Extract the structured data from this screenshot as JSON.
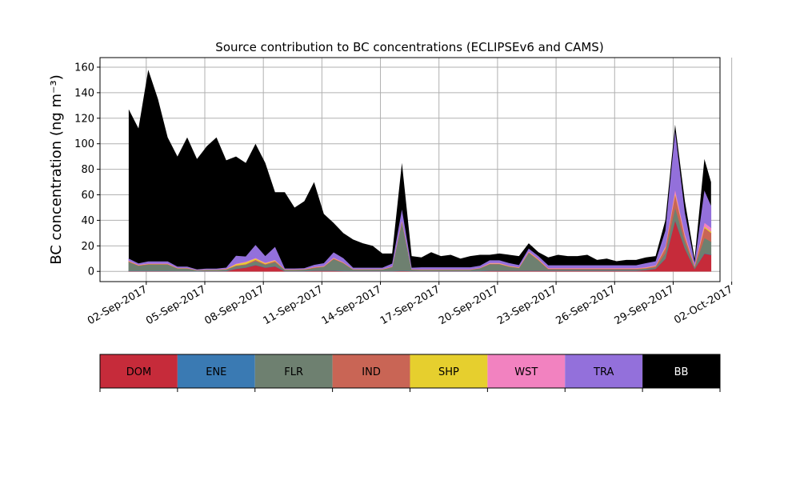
{
  "chart_data": {
    "type": "area",
    "stacked": true,
    "title": "Source contribution to BC concentrations (ECLIPSEv6 and CAMS)",
    "ylabel": "BC concentration (ng m⁻³)",
    "xlabel": "",
    "x_unit": "days since 02-Sep-2017 00:00",
    "xlim": [
      -2.37,
      29.4
    ],
    "ylim": [
      -8,
      167.5
    ],
    "grid": true,
    "yticks": [
      0,
      20,
      40,
      60,
      80,
      100,
      120,
      140,
      160
    ],
    "xticks": [
      {
        "value": 0,
        "label": "02-Sep-2017"
      },
      {
        "value": 3,
        "label": "05-Sep-2017"
      },
      {
        "value": 6,
        "label": "08-Sep-2017"
      },
      {
        "value": 9,
        "label": "11-Sep-2017"
      },
      {
        "value": 12,
        "label": "14-Sep-2017"
      },
      {
        "value": 15,
        "label": "17-Sep-2017"
      },
      {
        "value": 18,
        "label": "20-Sep-2017"
      },
      {
        "value": 21,
        "label": "23-Sep-2017"
      },
      {
        "value": 24,
        "label": "26-Sep-2017"
      },
      {
        "value": 27,
        "label": "29-Sep-2017"
      },
      {
        "value": 30,
        "label": "02-Oct-2017"
      }
    ],
    "x_start": -0.9,
    "x_step": 0.5,
    "total": [
      127,
      112,
      158,
      135,
      105,
      90,
      105,
      88,
      98,
      105,
      87,
      90,
      85,
      100,
      85,
      62,
      62,
      50,
      55,
      70,
      45,
      38,
      30,
      25,
      22,
      20,
      14,
      14,
      85,
      12,
      11,
      15,
      12,
      13,
      10,
      12,
      13,
      13,
      14,
      13,
      12,
      22,
      15,
      11,
      13,
      12,
      12,
      13,
      9,
      10,
      8,
      9,
      9,
      11,
      12,
      40,
      115,
      55,
      10,
      88,
      70
    ],
    "series": [
      {
        "name": "DOM",
        "color": "#c62b3a",
        "values": [
          0.3,
          0.3,
          0.3,
          0.3,
          0.3,
          0.2,
          0.2,
          0.1,
          0.2,
          0.2,
          0.3,
          2,
          3,
          5,
          3,
          4,
          0.2,
          0.2,
          0.2,
          0.5,
          0.5,
          0.5,
          0.3,
          0.2,
          0.2,
          0.2,
          0.2,
          0.2,
          0.5,
          0.2,
          0.2,
          0.2,
          0.2,
          0.2,
          0.2,
          0.2,
          0.3,
          0.5,
          0.5,
          0.5,
          0.5,
          0.5,
          0.5,
          0.5,
          0.5,
          0.5,
          0.5,
          0.5,
          0.5,
          0.5,
          0.5,
          0.5,
          0.5,
          1,
          2,
          10,
          40,
          18,
          2,
          14,
          13
        ]
      },
      {
        "name": "ENE",
        "color": "#3a7ab3",
        "values": [
          0.2,
          0.2,
          0.2,
          0.2,
          0.2,
          0.2,
          0.2,
          0.2,
          0.2,
          0.2,
          0.2,
          0.2,
          0.2,
          0.2,
          0.2,
          0.2,
          0.2,
          0.2,
          0.2,
          0.2,
          0.2,
          0.2,
          0.2,
          0.2,
          0.2,
          0.2,
          0.2,
          0.2,
          0.2,
          0.2,
          0.2,
          0.2,
          0.2,
          0.2,
          0.2,
          0.2,
          0.2,
          0.2,
          0.2,
          0.2,
          0.2,
          0.2,
          0.2,
          0.2,
          0.2,
          0.2,
          0.2,
          0.2,
          0.2,
          0.2,
          0.2,
          0.2,
          0.2,
          0.2,
          0.2,
          0.3,
          0.5,
          0.3,
          0.2,
          0.3,
          0.3
        ]
      },
      {
        "name": "FLR",
        "color": "#6e8070",
        "values": [
          7,
          4,
          5,
          5,
          5,
          2,
          2,
          0.5,
          0.8,
          0.8,
          1,
          2,
          2,
          3,
          2,
          3,
          0.8,
          0.8,
          1,
          2,
          3,
          9,
          6,
          1,
          1,
          1,
          1,
          3,
          38,
          1,
          0.8,
          0.8,
          0.8,
          0.8,
          0.8,
          0.8,
          2,
          5,
          5,
          3,
          2,
          14,
          8,
          1,
          1,
          1,
          1,
          1,
          1,
          1,
          1,
          1,
          1,
          1,
          1,
          4,
          10,
          5,
          1,
          12,
          10
        ]
      },
      {
        "name": "IND",
        "color": "#c96555",
        "values": [
          0.5,
          0.3,
          0.3,
          0.3,
          0.3,
          0.2,
          0.2,
          0.1,
          0.1,
          0.1,
          0.2,
          0.5,
          0.5,
          1,
          0.5,
          1,
          0.2,
          0.2,
          0.2,
          0.5,
          0.3,
          0.5,
          0.3,
          0.2,
          0.2,
          0.2,
          0.2,
          0.3,
          1,
          0.2,
          0.2,
          0.2,
          0.2,
          0.2,
          0.2,
          0.2,
          0.2,
          0.3,
          0.3,
          0.3,
          0.3,
          0.5,
          0.5,
          0.5,
          0.5,
          0.5,
          0.5,
          0.5,
          0.5,
          0.5,
          0.5,
          0.5,
          0.5,
          0.5,
          1,
          4,
          10,
          4,
          1,
          8,
          7
        ]
      },
      {
        "name": "SHP",
        "color": "#e6cf2e",
        "values": [
          0.2,
          0.2,
          0.2,
          0.2,
          0.2,
          0.1,
          0.1,
          0.1,
          0.1,
          0.1,
          0.2,
          1,
          1.5,
          1,
          0.8,
          0.5,
          0.1,
          0.1,
          0.1,
          0.1,
          0.1,
          0.2,
          0.2,
          0.1,
          0.1,
          0.1,
          0.1,
          0.1,
          0.3,
          0.1,
          0.1,
          0.1,
          0.1,
          0.1,
          0.1,
          0.1,
          0.1,
          0.2,
          0.2,
          0.2,
          0.1,
          0.2,
          0.2,
          0.1,
          0.1,
          0.1,
          0.1,
          0.1,
          0.1,
          0.1,
          0.1,
          0.1,
          0.1,
          0.2,
          0.2,
          0.5,
          1,
          0.5,
          0.2,
          1,
          1
        ]
      },
      {
        "name": "WST",
        "color": "#f282c0",
        "values": [
          0.3,
          0.3,
          0.3,
          0.3,
          0.3,
          0.2,
          0.2,
          0.1,
          0.2,
          0.2,
          0.3,
          0.5,
          0.5,
          0.5,
          0.5,
          0.5,
          0.2,
          0.2,
          0.2,
          0.3,
          0.3,
          0.5,
          0.3,
          0.2,
          0.2,
          0.2,
          0.2,
          0.3,
          0.5,
          0.2,
          0.2,
          0.2,
          0.2,
          0.2,
          0.2,
          0.2,
          0.2,
          0.5,
          0.5,
          0.3,
          0.3,
          0.5,
          0.5,
          0.5,
          0.5,
          0.5,
          0.5,
          0.5,
          0.5,
          0.5,
          0.5,
          0.5,
          0.5,
          0.5,
          0.5,
          1,
          3,
          2,
          0.5,
          3,
          3
        ]
      },
      {
        "name": "TRA",
        "color": "#9370db",
        "values": [
          1.5,
          1,
          1.5,
          1.5,
          1.5,
          0.8,
          0.8,
          0.5,
          0.6,
          0.6,
          0.8,
          6,
          4,
          10,
          5,
          10,
          0.6,
          0.6,
          0.6,
          1.5,
          2,
          4,
          3,
          1,
          1,
          1,
          1,
          2,
          8,
          1,
          1.5,
          1.5,
          1.5,
          1.5,
          1.5,
          1.5,
          1.5,
          2,
          2,
          2,
          1.5,
          2,
          2,
          2,
          2,
          2,
          2,
          2,
          2,
          2,
          2,
          2,
          2,
          3,
          3,
          12,
          45,
          16,
          2,
          25,
          17
        ]
      },
      {
        "name": "BB",
        "color": "#000000",
        "values": "total minus other sources"
      }
    ],
    "legend": {
      "placement": "bottom colorbar",
      "entries": [
        {
          "label": "DOM",
          "color": "#c62b3a",
          "text_color": "#000000"
        },
        {
          "label": "ENE",
          "color": "#3a7ab3",
          "text_color": "#000000"
        },
        {
          "label": "FLR",
          "color": "#6e8070",
          "text_color": "#000000"
        },
        {
          "label": "IND",
          "color": "#c96555",
          "text_color": "#000000"
        },
        {
          "label": "SHP",
          "color": "#e6cf2e",
          "text_color": "#000000"
        },
        {
          "label": "WST",
          "color": "#f282c0",
          "text_color": "#000000"
        },
        {
          "label": "TRA",
          "color": "#9370db",
          "text_color": "#000000"
        },
        {
          "label": "BB",
          "color": "#000000",
          "text_color": "#ffffff"
        }
      ]
    }
  }
}
